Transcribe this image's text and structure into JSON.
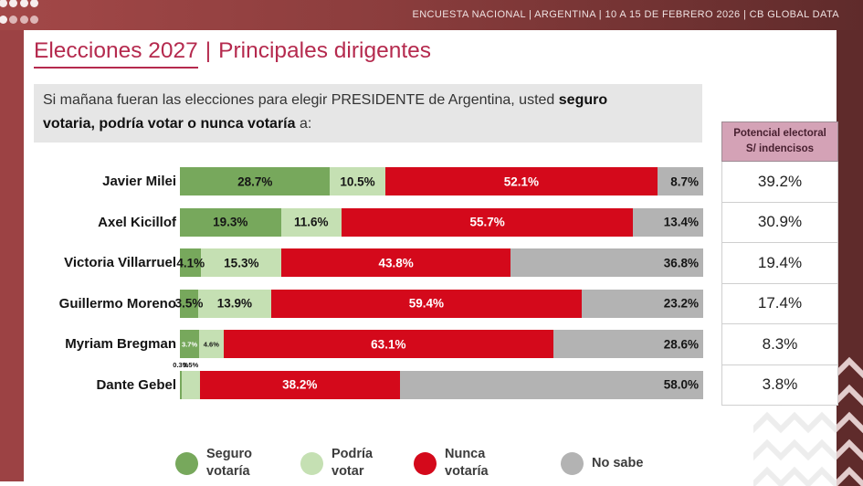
{
  "meta_bar": {
    "text": "ENCUESTA NACIONAL  |  ARGENTINA  | 10 A 15 DE FEBRERO 2026 | CB GLOBAL DATA"
  },
  "title": {
    "primary": "Elecciones 2027",
    "separator": "|",
    "secondary": "Principales dirigentes"
  },
  "question": {
    "line1": [
      {
        "t": "Si mañana fueran las elecciones para elegir PRESIDENTE de Argentina, usted ",
        "b": false
      },
      {
        "t": "seguro",
        "b": true
      }
    ],
    "line2": [
      {
        "t": "votaria, podría votar o nunca votaría",
        "b": true
      },
      {
        "t": " a:",
        "b": false
      }
    ]
  },
  "potential_table": {
    "header": "Potencial electoral\nS/ indencisos",
    "values": [
      "39.2%",
      "30.9%",
      "19.4%",
      "17.4%",
      "8.3%",
      "3.8%"
    ]
  },
  "legend": [
    {
      "label": "Seguro\nvotaría",
      "color": "#77a85c"
    },
    {
      "label": "Podría\nvotar",
      "color": "#c5e0b3"
    },
    {
      "label": "Nunca\nvotaría",
      "color": "#d4091b"
    },
    {
      "label": "No sabe",
      "color": "#b3b3b3"
    }
  ],
  "colors": {
    "accent_title": "#b52a4e",
    "band_left": "#9c4244",
    "band_right": "#5f2b2b",
    "band_top_start": "#a34848",
    "band_top_end": "#5f2b2b",
    "table_header_bg": "#d4a2b6",
    "question_bg": "#e6e6e6"
  },
  "chart_data": {
    "type": "bar",
    "orientation": "horizontal",
    "stacked": true,
    "xlim": [
      0,
      100
    ],
    "value_suffix": "%",
    "grid": false,
    "title": "Elecciones 2027 | Principales dirigentes",
    "categories": [
      "Javier Milei",
      "Axel Kicillof",
      "Victoria Villarruel",
      "Guillermo Moreno",
      "Myriam Bregman",
      "Dante Gebel"
    ],
    "series": [
      {
        "name": "Seguro votaría",
        "color": "#77a85c",
        "values": [
          28.7,
          19.3,
          4.1,
          3.5,
          3.7,
          0.3
        ]
      },
      {
        "name": "Podría votar",
        "color": "#c5e0b3",
        "values": [
          10.5,
          11.6,
          15.3,
          13.9,
          4.6,
          3.5
        ]
      },
      {
        "name": "Nunca votaría",
        "color": "#d4091b",
        "values": [
          52.1,
          55.7,
          43.8,
          59.4,
          63.1,
          38.2
        ]
      },
      {
        "name": "No sabe",
        "color": "#b3b3b3",
        "values": [
          8.7,
          13.4,
          36.8,
          23.2,
          28.6,
          58.0
        ]
      }
    ],
    "label_modes": [
      [
        "in",
        "in",
        "in-w",
        "right"
      ],
      [
        "in",
        "in",
        "in-w",
        "right"
      ],
      [
        "in",
        "in",
        "in-w",
        "right"
      ],
      [
        "in",
        "in",
        "in-w",
        "right"
      ],
      [
        "tiny-w",
        "tiny",
        "in-w",
        "right"
      ],
      [
        "above",
        "above",
        "in-w",
        "right"
      ]
    ],
    "right_column": {
      "title": "Potencial electoral S/ indencisos",
      "values": [
        39.2,
        30.9,
        19.4,
        17.4,
        8.3,
        3.8
      ]
    }
  }
}
